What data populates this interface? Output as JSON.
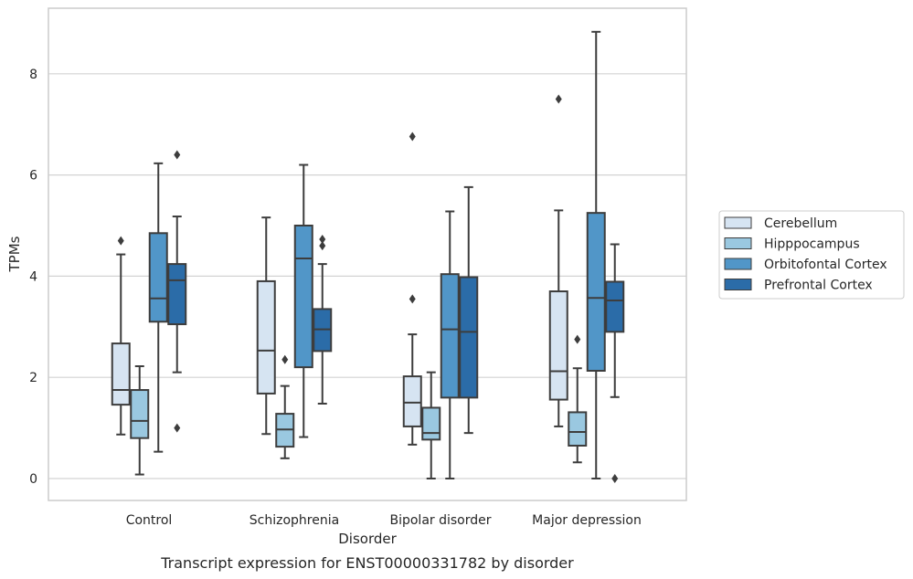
{
  "chart_data": {
    "type": "box",
    "title": "",
    "caption": "Transcript expression for ENST00000331782 by disorder",
    "xlabel": "Disorder",
    "ylabel": "TPMs",
    "ylim": [
      -0.4,
      9.3
    ],
    "yticks": [
      0,
      2,
      4,
      6,
      8
    ],
    "grid": true,
    "legend_position": "right",
    "categories": [
      "Control",
      "Schizophrenia",
      "Bipolar disorder",
      "Major depression"
    ],
    "series": [
      {
        "name": "Cerebellum",
        "color": "#d6e4f2",
        "boxes": [
          {
            "whisker_low": 0.87,
            "q1": 1.46,
            "median": 1.75,
            "q3": 2.67,
            "whisker_high": 4.43,
            "outliers": [
              4.7
            ]
          },
          {
            "whisker_low": 0.88,
            "q1": 1.68,
            "median": 2.53,
            "q3": 3.9,
            "whisker_high": 5.16,
            "outliers": []
          },
          {
            "whisker_low": 0.67,
            "q1": 1.03,
            "median": 1.5,
            "q3": 2.02,
            "whisker_high": 2.85,
            "outliers": [
              3.55,
              6.76
            ]
          },
          {
            "whisker_low": 1.03,
            "q1": 1.56,
            "median": 2.12,
            "q3": 3.7,
            "whisker_high": 5.3,
            "outliers": [
              7.5
            ]
          }
        ]
      },
      {
        "name": "Hipppocampus",
        "color": "#9ac8e0",
        "boxes": [
          {
            "whisker_low": 0.08,
            "q1": 0.8,
            "median": 1.14,
            "q3": 1.75,
            "whisker_high": 2.22,
            "outliers": []
          },
          {
            "whisker_low": 0.4,
            "q1": 0.63,
            "median": 0.97,
            "q3": 1.28,
            "whisker_high": 1.83,
            "outliers": [
              2.35
            ]
          },
          {
            "whisker_low": 0.0,
            "q1": 0.77,
            "median": 0.9,
            "q3": 1.4,
            "whisker_high": 2.1,
            "outliers": []
          },
          {
            "whisker_low": 0.32,
            "q1": 0.65,
            "median": 0.92,
            "q3": 1.31,
            "whisker_high": 2.18,
            "outliers": [
              2.75
            ]
          }
        ]
      },
      {
        "name": "Orbitofontal Cortex",
        "color": "#5196c8",
        "boxes": [
          {
            "whisker_low": 0.53,
            "q1": 3.1,
            "median": 3.56,
            "q3": 4.85,
            "whisker_high": 6.23,
            "outliers": []
          },
          {
            "whisker_low": 0.82,
            "q1": 2.2,
            "median": 4.35,
            "q3": 5.0,
            "whisker_high": 6.2,
            "outliers": []
          },
          {
            "whisker_low": 0.0,
            "q1": 1.6,
            "median": 2.95,
            "q3": 4.04,
            "whisker_high": 5.28,
            "outliers": []
          },
          {
            "whisker_low": 0.0,
            "q1": 2.13,
            "median": 3.57,
            "q3": 5.25,
            "whisker_high": 8.83,
            "outliers": []
          }
        ]
      },
      {
        "name": "Prefrontal Cortex",
        "color": "#2b6ca8",
        "boxes": [
          {
            "whisker_low": 2.1,
            "q1": 3.05,
            "median": 3.92,
            "q3": 4.24,
            "whisker_high": 5.18,
            "outliers": [
              1.0,
              6.4
            ]
          },
          {
            "whisker_low": 1.48,
            "q1": 2.52,
            "median": 2.95,
            "q3": 3.35,
            "whisker_high": 4.24,
            "outliers": [
              4.6,
              4.73
            ]
          },
          {
            "whisker_low": 0.9,
            "q1": 1.6,
            "median": 2.9,
            "q3": 3.98,
            "whisker_high": 5.76,
            "outliers": []
          },
          {
            "whisker_low": 1.61,
            "q1": 2.9,
            "median": 3.52,
            "q3": 3.89,
            "whisker_high": 4.63,
            "outliers": [
              0.0
            ]
          }
        ]
      }
    ]
  }
}
